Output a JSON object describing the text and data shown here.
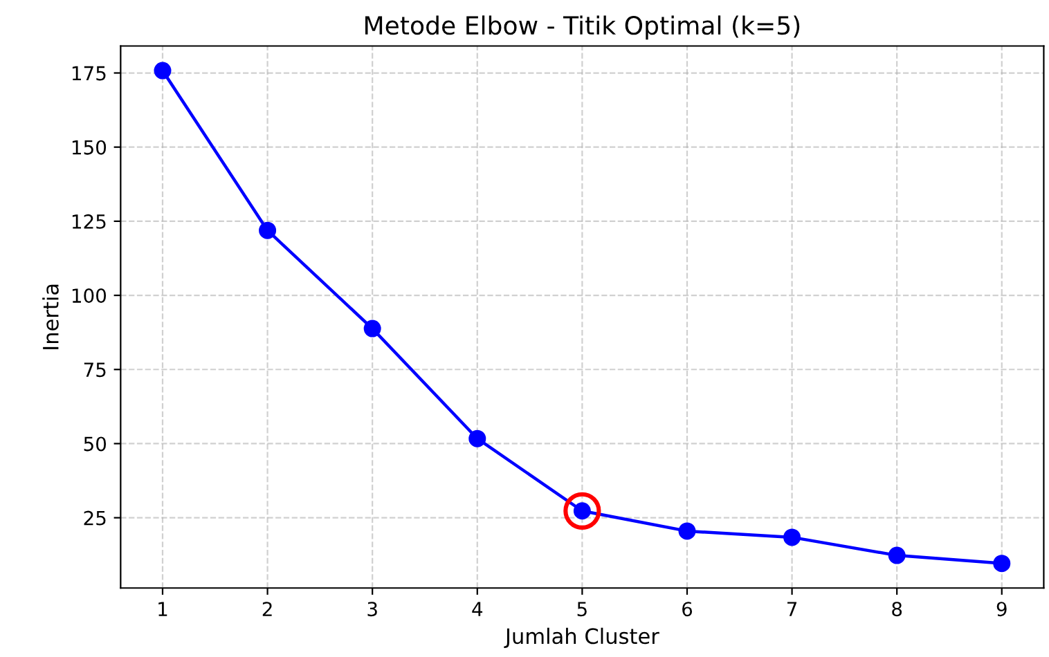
{
  "chart_data": {
    "type": "line",
    "title": "Metode Elbow - Titik Optimal (k=5)",
    "xlabel": "Jumlah Cluster",
    "ylabel": "Inertia",
    "x": [
      1,
      2,
      3,
      4,
      5,
      6,
      7,
      8,
      9
    ],
    "series": [
      {
        "color": "#0000ff",
        "values": [
          175.8,
          121.9,
          88.8,
          51.7,
          27.3,
          20.5,
          18.4,
          12.3,
          9.6
        ],
        "marker": "circle",
        "line_style": "solid"
      },
      {
        "type": "scatter",
        "color": "#ff0000",
        "x": [
          5
        ],
        "values": [
          27.3
        ],
        "marker": "circle"
      }
    ],
    "xlim": [
      0.6,
      9.4
    ],
    "ylim": [
      1.3,
      184.1
    ],
    "xticks": [
      1,
      2,
      3,
      4,
      5,
      6,
      7,
      8,
      9
    ],
    "yticks": [
      25,
      50,
      75,
      100,
      125,
      150,
      175
    ],
    "grid": true
  }
}
